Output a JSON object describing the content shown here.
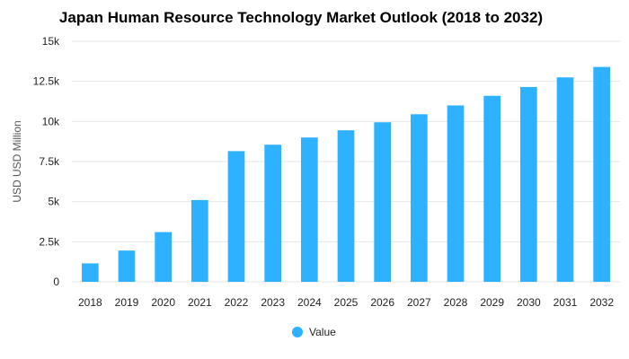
{
  "chart_data": {
    "type": "bar",
    "title": "Japan Human Resource Technology Market Outlook (2018 to 2032)",
    "xlabel": "",
    "ylabel": "USD USD Million",
    "categories": [
      "2018",
      "2019",
      "2020",
      "2021",
      "2022",
      "2023",
      "2024",
      "2025",
      "2026",
      "2027",
      "2028",
      "2029",
      "2030",
      "2031",
      "2032"
    ],
    "series": [
      {
        "name": "Value",
        "color": "#2eb2ff",
        "values": [
          1150,
          1950,
          3100,
          5100,
          8150,
          8550,
          9000,
          9450,
          9950,
          10450,
          11000,
          11600,
          12150,
          12750,
          13400
        ]
      }
    ],
    "ylim": [
      0,
      15000
    ],
    "yticks": [
      {
        "value": 0,
        "label": "0"
      },
      {
        "value": 2500,
        "label": "2.5k"
      },
      {
        "value": 5000,
        "label": "5k"
      },
      {
        "value": 7500,
        "label": "7.5k"
      },
      {
        "value": 10000,
        "label": "10k"
      },
      {
        "value": 12500,
        "label": "12.5k"
      },
      {
        "value": 15000,
        "label": "15k"
      }
    ],
    "grid": true,
    "legend_position": "bottom"
  }
}
